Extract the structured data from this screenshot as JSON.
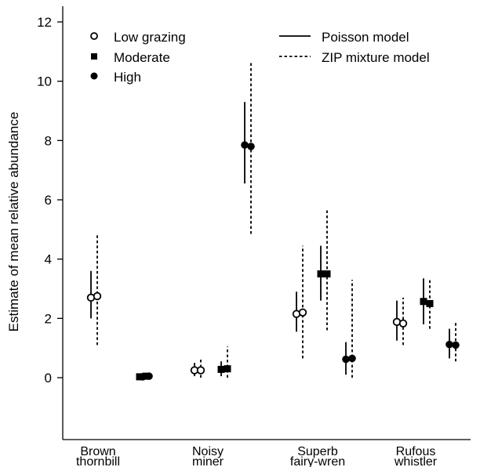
{
  "chart_data": {
    "type": "scatter",
    "title": "",
    "xlabel": "",
    "ylabel": "Estimate of mean relative abundance",
    "ylim": [
      -0.6,
      12.6
    ],
    "yticks": [
      0,
      2,
      4,
      6,
      8,
      10,
      12
    ],
    "ytick_labels": [
      "0",
      "2",
      "4",
      "6",
      "8",
      "10",
      "12"
    ],
    "grid": false,
    "categories": [
      {
        "line1": "Brown",
        "line2": "thornbill"
      },
      {
        "line1": "Noisy",
        "line2": "miner"
      },
      {
        "line1": "Superb",
        "line2": "fairy-wren"
      },
      {
        "line1": "Rufous",
        "line2": "whistler"
      }
    ],
    "grazing_levels": [
      {
        "label": "Low grazing",
        "marker": "open-circle"
      },
      {
        "label": "Moderate",
        "marker": "filled-square"
      },
      {
        "label": "High",
        "marker": "filled-circle"
      }
    ],
    "models": [
      {
        "label": "Poisson model",
        "line": "solid"
      },
      {
        "label": "ZIP mixture model",
        "line": "dashed"
      }
    ],
    "legend_placement": "top",
    "estimates": [
      {
        "species": 0,
        "grazing": 0,
        "model": 0,
        "mean": 2.7,
        "lower": 2.0,
        "upper": 3.6
      },
      {
        "species": 0,
        "grazing": 0,
        "model": 1,
        "mean": 2.75,
        "lower": 1.1,
        "upper": 4.85
      },
      {
        "species": 0,
        "grazing": 1,
        "model": 0,
        "mean": 0.03,
        "lower": 0.03,
        "upper": 0.03
      },
      {
        "species": 0,
        "grazing": 1,
        "model": 1,
        "mean": 0.05,
        "lower": 0.05,
        "upper": 0.05
      },
      {
        "species": 0,
        "grazing": 2,
        "model": 0,
        "mean": 0.03,
        "lower": 0.03,
        "upper": 0.03
      },
      {
        "species": 0,
        "grazing": 2,
        "model": 1,
        "mean": 0.05,
        "lower": 0.05,
        "upper": 0.05
      },
      {
        "species": 1,
        "grazing": 0,
        "model": 0,
        "mean": 0.25,
        "lower": 0.05,
        "upper": 0.5
      },
      {
        "species": 1,
        "grazing": 0,
        "model": 1,
        "mean": 0.25,
        "lower": 0.0,
        "upper": 0.65
      },
      {
        "species": 1,
        "grazing": 1,
        "model": 0,
        "mean": 0.28,
        "lower": 0.05,
        "upper": 0.55
      },
      {
        "species": 1,
        "grazing": 1,
        "model": 1,
        "mean": 0.3,
        "lower": 0.0,
        "upper": 1.05
      },
      {
        "species": 1,
        "grazing": 2,
        "model": 0,
        "mean": 7.85,
        "lower": 6.55,
        "upper": 9.3
      },
      {
        "species": 1,
        "grazing": 2,
        "model": 1,
        "mean": 7.8,
        "lower": 4.85,
        "upper": 10.65
      },
      {
        "species": 2,
        "grazing": 0,
        "model": 0,
        "mean": 2.15,
        "lower": 1.55,
        "upper": 2.9
      },
      {
        "species": 2,
        "grazing": 0,
        "model": 1,
        "mean": 2.2,
        "lower": 0.65,
        "upper": 4.45
      },
      {
        "species": 2,
        "grazing": 1,
        "model": 0,
        "mean": 3.5,
        "lower": 2.6,
        "upper": 4.45
      },
      {
        "species": 2,
        "grazing": 1,
        "model": 1,
        "mean": 3.5,
        "lower": 1.6,
        "upper": 5.65
      },
      {
        "species": 2,
        "grazing": 2,
        "model": 0,
        "mean": 0.62,
        "lower": 0.1,
        "upper": 1.2
      },
      {
        "species": 2,
        "grazing": 2,
        "model": 1,
        "mean": 0.65,
        "lower": 0.0,
        "upper": 3.3
      },
      {
        "species": 3,
        "grazing": 0,
        "model": 0,
        "mean": 1.88,
        "lower": 1.25,
        "upper": 2.6
      },
      {
        "species": 3,
        "grazing": 0,
        "model": 1,
        "mean": 1.83,
        "lower": 1.1,
        "upper": 2.7
      },
      {
        "species": 3,
        "grazing": 1,
        "model": 0,
        "mean": 2.57,
        "lower": 1.8,
        "upper": 3.35
      },
      {
        "species": 3,
        "grazing": 1,
        "model": 1,
        "mean": 2.5,
        "lower": 1.65,
        "upper": 3.3
      },
      {
        "species": 3,
        "grazing": 2,
        "model": 0,
        "mean": 1.12,
        "lower": 0.65,
        "upper": 1.65
      },
      {
        "species": 3,
        "grazing": 2,
        "model": 1,
        "mean": 1.1,
        "lower": 0.55,
        "upper": 1.85
      }
    ]
  }
}
